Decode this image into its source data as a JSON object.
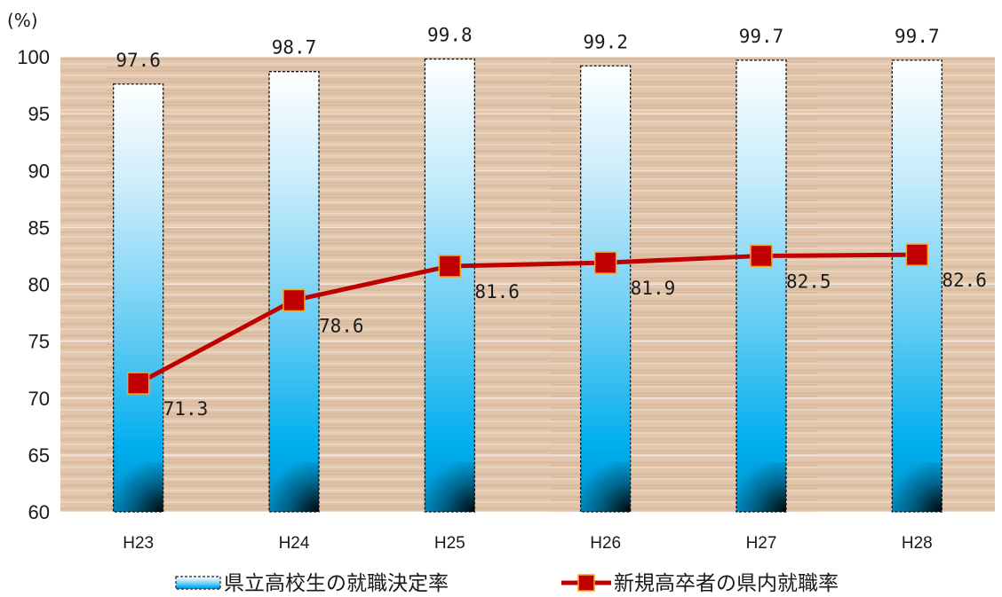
{
  "chart_data": {
    "type": "bar",
    "unit_label": "(%)",
    "categories": [
      "H23",
      "H24",
      "H25",
      "H26",
      "H27",
      "H28"
    ],
    "ylim": [
      60,
      100
    ],
    "yticks": [
      60,
      65,
      70,
      75,
      80,
      85,
      90,
      95,
      100
    ],
    "grid": true,
    "legend_position": "bottom",
    "series": [
      {
        "name": "県立高校生の就職決定率",
        "type": "bar",
        "values": [
          97.6,
          98.7,
          99.8,
          99.2,
          99.7,
          99.7
        ],
        "labels": [
          "97.6",
          "98.7",
          "99.8",
          "99.2",
          "99.7",
          "99.7"
        ],
        "color": "#00b0f0"
      },
      {
        "name": "新規高卒者の県内就職率",
        "type": "line",
        "values": [
          71.3,
          78.6,
          81.6,
          81.9,
          82.5,
          82.6
        ],
        "labels": [
          "71.3",
          "78.6",
          "81.6",
          "81.9",
          "82.5",
          "82.6"
        ],
        "color": "#c00000",
        "marker_color": "#c00000",
        "marker_border": "#f5a623"
      }
    ]
  }
}
